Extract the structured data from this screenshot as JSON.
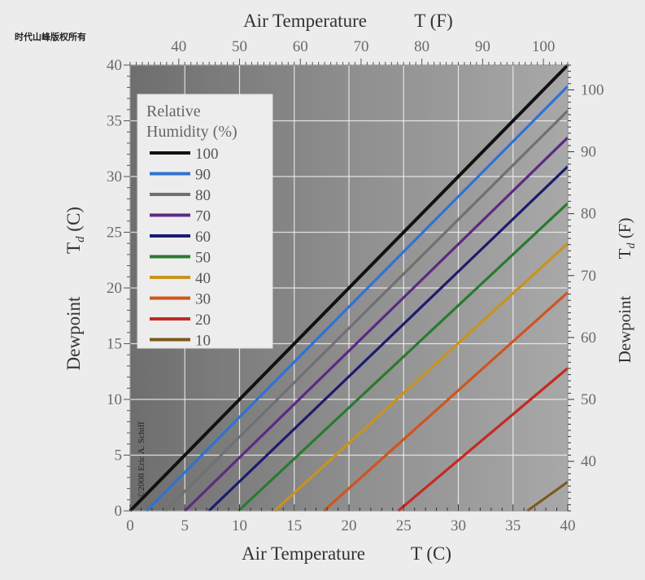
{
  "watermark": "时代山峰版权所有",
  "colors": {
    "plot_background": "#8e8e8e",
    "grid": "#f2f2f2",
    "axis_text": "#6a6a6a",
    "title_text": "#333333"
  },
  "chart_data": {
    "type": "line",
    "title_top": "Air Temperature",
    "title_top_unit": "T (F)",
    "xlabel": "Air Temperature",
    "xlabel_unit": "T (C)",
    "ylabel": "Dewpoint",
    "ylabel_unit": "T",
    "ylabel_subscript": "d",
    "ylabel_unit_left": "(C)",
    "ylabel_unit_right": "(F)",
    "xlim": [
      0,
      40
    ],
    "ylim": [
      0,
      40
    ],
    "x_ticks": [
      "0",
      "5",
      "10",
      "15",
      "20",
      "25",
      "30",
      "35",
      "40"
    ],
    "y_ticks": [
      "0",
      "5",
      "10",
      "15",
      "20",
      "25",
      "30",
      "35",
      "40"
    ],
    "top_ticks": [
      "40",
      "50",
      "60",
      "70",
      "80",
      "90",
      "100"
    ],
    "right_ticks": [
      "40",
      "50",
      "60",
      "70",
      "80",
      "90",
      "100"
    ],
    "grid": true,
    "legend_position": "top-left",
    "legend_title": "Relative",
    "legend_title_2": "Humidity (%)",
    "copyright": "©2008 Eric A. Schiff",
    "series": [
      {
        "name": "100",
        "rh": 100,
        "color": "#111111",
        "x": [
          0,
          40
        ],
        "y": [
          0,
          40
        ]
      },
      {
        "name": "90",
        "rh": 90,
        "color": "#2f72d4",
        "x": [
          1.5,
          40
        ],
        "y": [
          0,
          38.1
        ]
      },
      {
        "name": "80",
        "rh": 80,
        "color": "#707070",
        "x": [
          3.2,
          40
        ],
        "y": [
          0,
          35.9
        ]
      },
      {
        "name": "70",
        "rh": 70,
        "color": "#5c2a82",
        "x": [
          5.0,
          40
        ],
        "y": [
          0,
          33.5
        ]
      },
      {
        "name": "60",
        "rh": 60,
        "color": "#1b1c6e",
        "x": [
          7.2,
          40
        ],
        "y": [
          0,
          30.9
        ]
      },
      {
        "name": "50",
        "rh": 50,
        "color": "#2a7a2f",
        "x": [
          9.9,
          40
        ],
        "y": [
          0,
          27.6
        ]
      },
      {
        "name": "40",
        "rh": 40,
        "color": "#c8931f",
        "x": [
          13.2,
          40
        ],
        "y": [
          0,
          24.0
        ]
      },
      {
        "name": "30",
        "rh": 30,
        "color": "#cf5520",
        "x": [
          17.7,
          40
        ],
        "y": [
          0,
          19.6
        ]
      },
      {
        "name": "20",
        "rh": 20,
        "color": "#c42a22",
        "x": [
          24.5,
          40
        ],
        "y": [
          0,
          12.8
        ]
      },
      {
        "name": "10",
        "rh": 10,
        "color": "#7a5a1e",
        "x": [
          36.3,
          40
        ],
        "y": [
          0,
          2.6
        ]
      }
    ]
  }
}
